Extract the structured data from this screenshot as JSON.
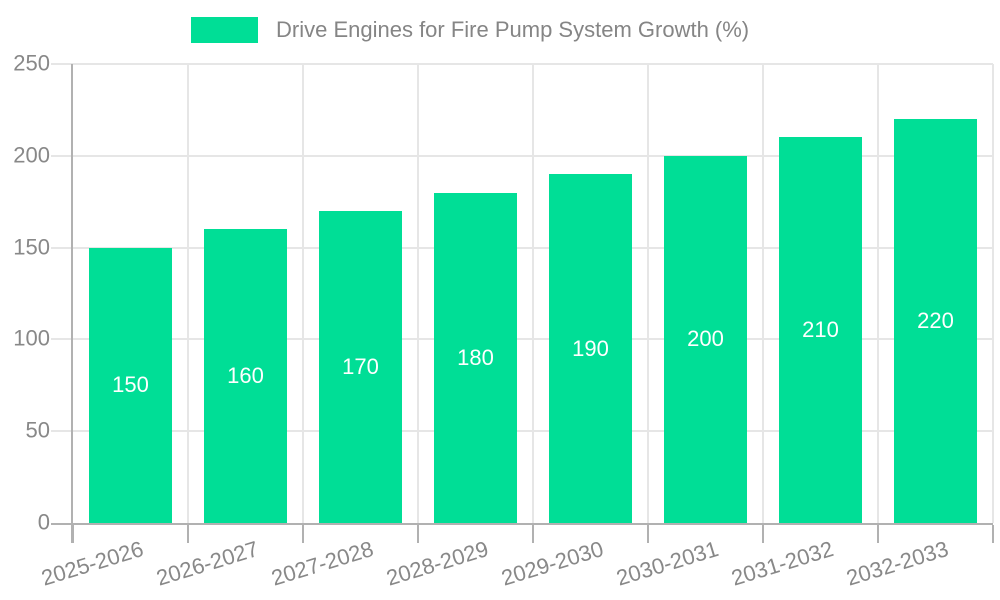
{
  "chart_data": {
    "type": "bar",
    "title": "Drive Engines for Fire Pump System Growth (%)",
    "categories": [
      "2025-2026",
      "2026-2027",
      "2027-2028",
      "2028-2029",
      "2029-2030",
      "2030-2031",
      "2031-2032",
      "2032-2033"
    ],
    "values": [
      150,
      160,
      170,
      180,
      190,
      200,
      210,
      220
    ],
    "series": [
      {
        "name": "Drive Engines for Fire Pump System Growth (%)",
        "values": [
          150,
          160,
          170,
          180,
          190,
          200,
          210,
          220
        ]
      }
    ],
    "xlabel": "",
    "ylabel": "",
    "ylim": [
      0,
      250
    ],
    "yticks": [
      0,
      50,
      100,
      150,
      200,
      250
    ],
    "grid": true,
    "legend_position": "top",
    "bar_color": "#00de96",
    "value_label_color": "#ffffff",
    "grid_color": "#e6e6e6",
    "axis_color": "#b1b1b1",
    "tick_text_color": "#888888",
    "legend_text_color": "#858585"
  }
}
